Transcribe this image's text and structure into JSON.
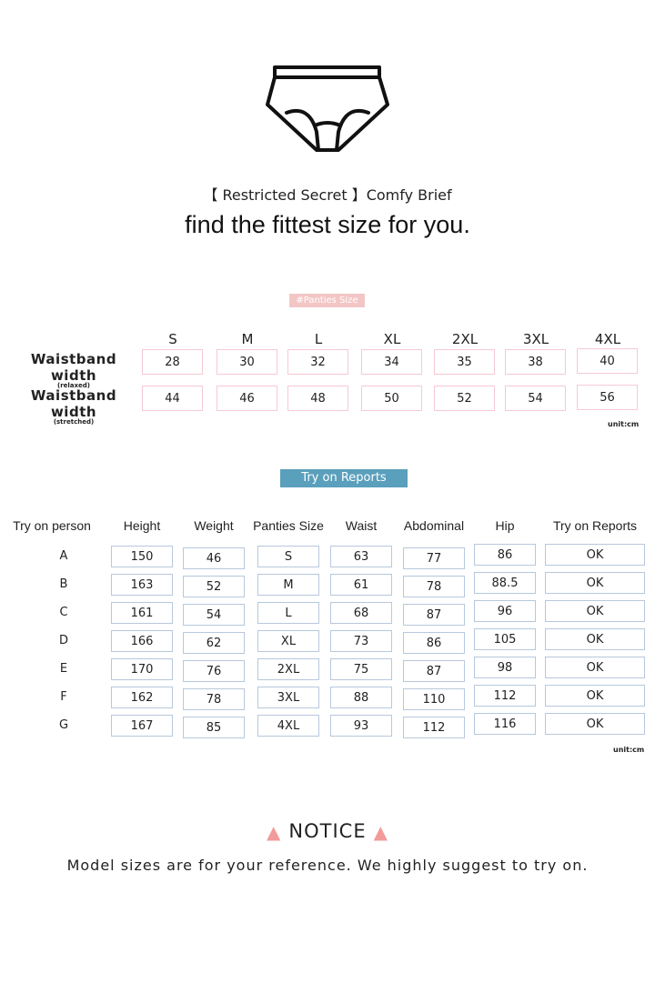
{
  "header": {
    "icon": "briefs-icon",
    "subtitle": "【 Restricted Secret 】Comfy Brief",
    "headline": "find the fittest size for you."
  },
  "panties_size": {
    "tag": "#Panties Size",
    "sizes": [
      "S",
      "M",
      "L",
      "XL",
      "2XL",
      "3XL",
      "4XL"
    ],
    "rows": [
      {
        "label": "Waistband width",
        "sub": "(relaxed)",
        "values": [
          "28",
          "30",
          "32",
          "34",
          "35",
          "38",
          "40"
        ]
      },
      {
        "label": "Waistband width",
        "sub": "(stretched)",
        "values": [
          "44",
          "46",
          "48",
          "50",
          "52",
          "54",
          "56"
        ]
      }
    ],
    "unit": "unit:cm",
    "box_color": "#f7c9d4"
  },
  "reports": {
    "tag": "Try on Reports",
    "headers": [
      "Try on person",
      "Height",
      "Weight",
      "Panties Size",
      "Waist",
      "Abdominal",
      "Hip",
      "Try on Reports"
    ],
    "rows": [
      [
        "A",
        "150",
        "46",
        "S",
        "63",
        "77",
        "86",
        "OK"
      ],
      [
        "B",
        "163",
        "52",
        "M",
        "61",
        "78",
        "88.5",
        "OK"
      ],
      [
        "C",
        "161",
        "54",
        "L",
        "68",
        "87",
        "96",
        "OK"
      ],
      [
        "D",
        "166",
        "62",
        "XL",
        "73",
        "86",
        "105",
        "OK"
      ],
      [
        "E",
        "170",
        "76",
        "2XL",
        "75",
        "87",
        "98",
        "OK"
      ],
      [
        "F",
        "162",
        "78",
        "3XL",
        "88",
        "110",
        "112",
        "OK"
      ],
      [
        "G",
        "167",
        "85",
        "4XL",
        "93",
        "112",
        "116",
        "OK"
      ]
    ],
    "unit": "unit:cm",
    "tag_color": "#5a9fbc"
  },
  "notice": {
    "icon": "warning-icon",
    "title": "NOTICE",
    "text": "Model sizes are for your reference. We highly suggest to try on."
  }
}
